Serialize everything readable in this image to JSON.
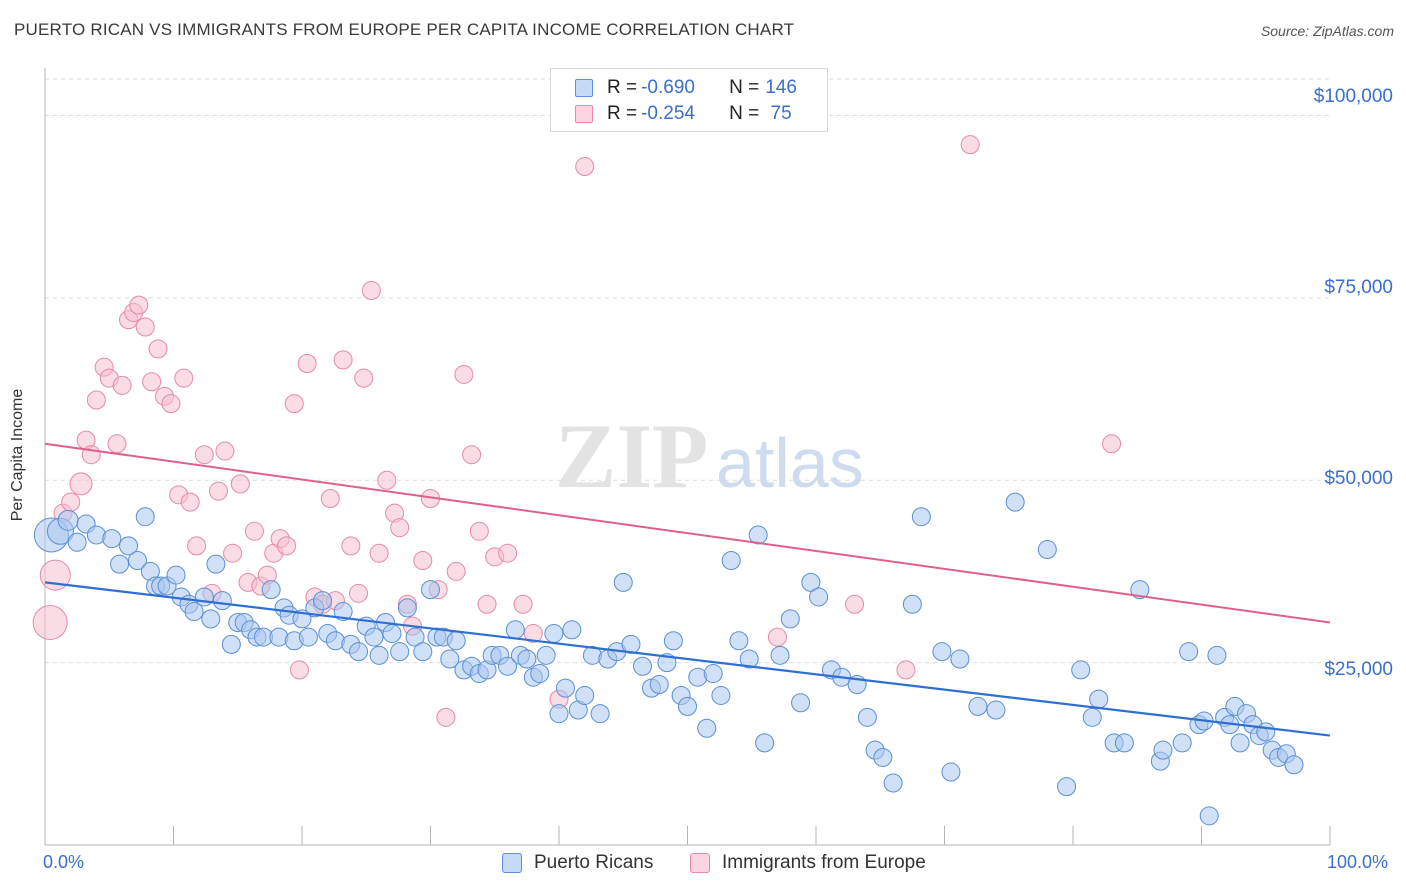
{
  "header": {
    "title": "PUERTO RICAN VS IMMIGRANTS FROM EUROPE PER CAPITA INCOME CORRELATION CHART",
    "source": "Source: ZipAtlas.com"
  },
  "colors": {
    "blue_fill": "#a9c6ee",
    "blue_stroke": "#5b8fd6",
    "blue_line": "#2f6fd3",
    "pink_fill": "#f6bfd0",
    "pink_stroke": "#e68aa8",
    "pink_line": "#e0608c",
    "accent_text": "#3a6fd0",
    "grid": "#dcdcdc"
  },
  "legend": {
    "rows": [
      {
        "r_label": "R = ",
        "r_value": "-0.690",
        "n_label": "N = ",
        "n_value": "146"
      },
      {
        "r_label": "R = ",
        "r_value": "-0.254",
        "n_label": "N = ",
        "n_value": " 75"
      }
    ]
  },
  "bottom_legend": {
    "series1": "Puerto Ricans",
    "series2": "Immigrants from Europe"
  },
  "axes": {
    "ylabel": "Per Capita Income",
    "x_min_label": "0.0%",
    "x_max_label": "100.0%",
    "y_ticks": [
      "$100,000",
      "$75,000",
      "$50,000",
      "$25,000"
    ]
  },
  "watermark": {
    "zip": "ZIP",
    "atlas": "atlas"
  },
  "chart_data": {
    "type": "scatter",
    "title": "PUERTO RICAN VS IMMIGRANTS FROM EUROPE PER CAPITA INCOME CORRELATION CHART",
    "xlabel": "",
    "ylabel": "Per Capita Income",
    "xlim": [
      0,
      100
    ],
    "ylim": [
      0,
      105000
    ],
    "y_tick_values": [
      25000,
      50000,
      75000,
      100000
    ],
    "grid": true,
    "legend_position": "top-center",
    "series": [
      {
        "name": "Puerto Ricans",
        "r": -0.69,
        "n": 146,
        "trend": {
          "x0": 0,
          "y0": 36000,
          "x1": 100,
          "y1": 15000
        },
        "points": [
          [
            0.5,
            42500
          ],
          [
            1.2,
            43000
          ],
          [
            1.8,
            44500
          ],
          [
            2.5,
            41500
          ],
          [
            3.2,
            44000
          ],
          [
            4.0,
            42500
          ],
          [
            5.2,
            42000
          ],
          [
            5.8,
            38500
          ],
          [
            6.5,
            41000
          ],
          [
            7.2,
            39000
          ],
          [
            7.8,
            45000
          ],
          [
            8.2,
            37500
          ],
          [
            8.6,
            35500
          ],
          [
            9.0,
            35500
          ],
          [
            9.5,
            35500
          ],
          [
            10.2,
            37000
          ],
          [
            10.6,
            34000
          ],
          [
            11.2,
            33000
          ],
          [
            11.6,
            32000
          ],
          [
            12.4,
            34000
          ],
          [
            12.9,
            31000
          ],
          [
            13.3,
            38500
          ],
          [
            13.8,
            33500
          ],
          [
            14.5,
            27500
          ],
          [
            15.0,
            30500
          ],
          [
            15.5,
            30500
          ],
          [
            16.0,
            29500
          ],
          [
            16.5,
            28500
          ],
          [
            17.0,
            28500
          ],
          [
            17.6,
            35000
          ],
          [
            18.2,
            28500
          ],
          [
            18.6,
            32500
          ],
          [
            19.0,
            31500
          ],
          [
            19.4,
            28000
          ],
          [
            20.0,
            31000
          ],
          [
            20.5,
            28500
          ],
          [
            21.0,
            32500
          ],
          [
            21.6,
            33500
          ],
          [
            22.0,
            29000
          ],
          [
            22.6,
            28000
          ],
          [
            23.2,
            32000
          ],
          [
            23.8,
            27500
          ],
          [
            24.4,
            26500
          ],
          [
            25.0,
            30000
          ],
          [
            25.6,
            28500
          ],
          [
            26.0,
            26000
          ],
          [
            26.5,
            30500
          ],
          [
            27.0,
            29000
          ],
          [
            27.6,
            26500
          ],
          [
            28.2,
            32500
          ],
          [
            28.8,
            28500
          ],
          [
            29.4,
            26500
          ],
          [
            30.0,
            35000
          ],
          [
            30.5,
            28500
          ],
          [
            31.0,
            28500
          ],
          [
            31.5,
            25500
          ],
          [
            32.0,
            28000
          ],
          [
            32.6,
            24000
          ],
          [
            33.2,
            24500
          ],
          [
            33.8,
            23500
          ],
          [
            34.4,
            24000
          ],
          [
            34.8,
            26000
          ],
          [
            35.4,
            26000
          ],
          [
            36.0,
            24500
          ],
          [
            36.6,
            29500
          ],
          [
            37.0,
            26000
          ],
          [
            37.5,
            25500
          ],
          [
            38.0,
            23000
          ],
          [
            38.5,
            23500
          ],
          [
            39.0,
            26000
          ],
          [
            39.6,
            29000
          ],
          [
            40.0,
            18000
          ],
          [
            40.5,
            21500
          ],
          [
            41.0,
            29500
          ],
          [
            41.5,
            18500
          ],
          [
            42.0,
            20500
          ],
          [
            42.6,
            26000
          ],
          [
            43.2,
            18000
          ],
          [
            43.8,
            25500
          ],
          [
            44.5,
            26500
          ],
          [
            45.0,
            36000
          ],
          [
            45.6,
            27500
          ],
          [
            46.5,
            24500
          ],
          [
            47.2,
            21500
          ],
          [
            47.8,
            22000
          ],
          [
            48.4,
            25000
          ],
          [
            48.9,
            28000
          ],
          [
            49.5,
            20500
          ],
          [
            50.0,
            19000
          ],
          [
            50.8,
            23000
          ],
          [
            51.5,
            16000
          ],
          [
            52.0,
            23500
          ],
          [
            52.6,
            20500
          ],
          [
            53.4,
            39000
          ],
          [
            54.0,
            28000
          ],
          [
            54.8,
            25500
          ],
          [
            55.5,
            42500
          ],
          [
            56.0,
            14000
          ],
          [
            57.2,
            26000
          ],
          [
            58.0,
            31000
          ],
          [
            58.8,
            19500
          ],
          [
            59.6,
            36000
          ],
          [
            60.2,
            34000
          ],
          [
            61.2,
            24000
          ],
          [
            62.0,
            23000
          ],
          [
            63.2,
            22000
          ],
          [
            64.0,
            17500
          ],
          [
            64.6,
            13000
          ],
          [
            65.2,
            12000
          ],
          [
            66.0,
            8500
          ],
          [
            67.5,
            33000
          ],
          [
            68.2,
            45000
          ],
          [
            69.8,
            26500
          ],
          [
            70.5,
            10000
          ],
          [
            71.2,
            25500
          ],
          [
            72.6,
            19000
          ],
          [
            74.0,
            18500
          ],
          [
            75.5,
            47000
          ],
          [
            78.0,
            40500
          ],
          [
            79.5,
            8000
          ],
          [
            80.6,
            24000
          ],
          [
            81.5,
            17500
          ],
          [
            82.0,
            20000
          ],
          [
            83.2,
            14000
          ],
          [
            84.0,
            14000
          ],
          [
            85.2,
            35000
          ],
          [
            86.8,
            11500
          ],
          [
            87.0,
            13000
          ],
          [
            88.5,
            14000
          ],
          [
            89.0,
            26500
          ],
          [
            89.8,
            16500
          ],
          [
            90.2,
            17000
          ],
          [
            90.6,
            4000
          ],
          [
            91.2,
            26000
          ],
          [
            91.8,
            17500
          ],
          [
            92.2,
            16500
          ],
          [
            92.6,
            19000
          ],
          [
            93.0,
            14000
          ],
          [
            93.5,
            18000
          ],
          [
            94.0,
            16500
          ],
          [
            94.5,
            15000
          ],
          [
            95.0,
            15500
          ],
          [
            95.5,
            13000
          ],
          [
            96.0,
            12000
          ],
          [
            96.6,
            12500
          ],
          [
            97.2,
            11000
          ]
        ]
      },
      {
        "name": "Immigrants from Europe",
        "r": -0.254,
        "n": 75,
        "trend": {
          "x0": 0,
          "y0": 55000,
          "x1": 100,
          "y1": 30500
        },
        "points": [
          [
            0.4,
            30500
          ],
          [
            0.8,
            37000
          ],
          [
            1.4,
            45500
          ],
          [
            2.0,
            47000
          ],
          [
            2.8,
            49500
          ],
          [
            3.2,
            55500
          ],
          [
            3.6,
            53500
          ],
          [
            4.0,
            61000
          ],
          [
            4.6,
            65500
          ],
          [
            5.0,
            64000
          ],
          [
            5.6,
            55000
          ],
          [
            6.0,
            63000
          ],
          [
            6.5,
            72000
          ],
          [
            6.9,
            73000
          ],
          [
            7.3,
            74000
          ],
          [
            7.8,
            71000
          ],
          [
            8.3,
            63500
          ],
          [
            8.8,
            68000
          ],
          [
            9.3,
            61500
          ],
          [
            9.8,
            60500
          ],
          [
            10.4,
            48000
          ],
          [
            10.8,
            64000
          ],
          [
            11.3,
            47000
          ],
          [
            11.8,
            41000
          ],
          [
            12.4,
            53500
          ],
          [
            13.0,
            34500
          ],
          [
            13.5,
            48500
          ],
          [
            14.0,
            54000
          ],
          [
            14.6,
            40000
          ],
          [
            15.2,
            49500
          ],
          [
            15.8,
            36000
          ],
          [
            16.3,
            43000
          ],
          [
            16.8,
            35500
          ],
          [
            17.3,
            37000
          ],
          [
            17.8,
            40000
          ],
          [
            18.3,
            42000
          ],
          [
            18.8,
            41000
          ],
          [
            19.4,
            60500
          ],
          [
            19.8,
            24000
          ],
          [
            20.4,
            66000
          ],
          [
            21.0,
            34000
          ],
          [
            21.6,
            33000
          ],
          [
            22.2,
            47500
          ],
          [
            22.6,
            33500
          ],
          [
            23.2,
            66500
          ],
          [
            23.8,
            41000
          ],
          [
            24.4,
            34500
          ],
          [
            24.8,
            64000
          ],
          [
            25.4,
            76000
          ],
          [
            26.0,
            40000
          ],
          [
            26.6,
            50000
          ],
          [
            27.2,
            45500
          ],
          [
            27.6,
            43500
          ],
          [
            28.2,
            33000
          ],
          [
            28.6,
            30000
          ],
          [
            29.4,
            39000
          ],
          [
            30.0,
            47500
          ],
          [
            30.6,
            35000
          ],
          [
            31.2,
            17500
          ],
          [
            32.0,
            37500
          ],
          [
            32.6,
            64500
          ],
          [
            33.2,
            53500
          ],
          [
            33.8,
            43000
          ],
          [
            34.4,
            33000
          ],
          [
            35.0,
            39500
          ],
          [
            36.0,
            40000
          ],
          [
            37.2,
            33000
          ],
          [
            38.0,
            29000
          ],
          [
            40.0,
            20000
          ],
          [
            42.0,
            93000
          ],
          [
            57.0,
            28500
          ],
          [
            63.0,
            33000
          ],
          [
            67.0,
            24000
          ],
          [
            72.0,
            96000
          ],
          [
            83.0,
            55000
          ]
        ]
      }
    ]
  }
}
